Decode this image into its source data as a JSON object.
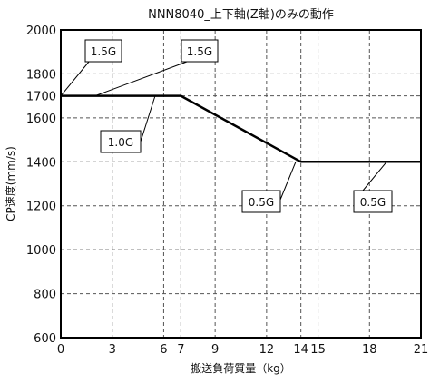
{
  "chart_data": {
    "type": "line",
    "title": "NNN8040_上下軸(Z軸)のみの動作",
    "xlabel": "搬送負荷質量（kg）",
    "ylabel": "CP速度(mm/s)",
    "xlim": [
      0,
      21
    ],
    "ylim": [
      600,
      2000
    ],
    "x_ticks": [
      0,
      3,
      6,
      7,
      9,
      12,
      14,
      15,
      18,
      21
    ],
    "y_ticks": [
      600,
      800,
      1000,
      1200,
      1400,
      1600,
      1700,
      1800,
      2000
    ],
    "x_tick_labels": [
      "0",
      "3",
      "6",
      "7",
      "9",
      "12",
      "14",
      "15",
      "18",
      "21"
    ],
    "y_tick_labels": [
      "600",
      "800",
      "1000",
      "1200",
      "1400",
      "1600",
      "1700",
      "1800",
      "2000"
    ],
    "grid": true,
    "series": [
      {
        "points": [
          {
            "x": 0,
            "y": 1700
          },
          {
            "x": 7,
            "y": 1700
          },
          {
            "x": 14,
            "y": 1400
          },
          {
            "x": 21,
            "y": 1400
          }
        ]
      }
    ],
    "annotations": [
      {
        "text": "1.5G",
        "x": 0,
        "y": 1700
      },
      {
        "text": "1.5G",
        "x": 2,
        "y": 1700
      },
      {
        "text": "1.0G",
        "x": 5.5,
        "y": 1700
      },
      {
        "text": "0.5G",
        "x": 13.7,
        "y": 1400
      },
      {
        "text": "0.5G",
        "x": 19,
        "y": 1400
      }
    ]
  }
}
